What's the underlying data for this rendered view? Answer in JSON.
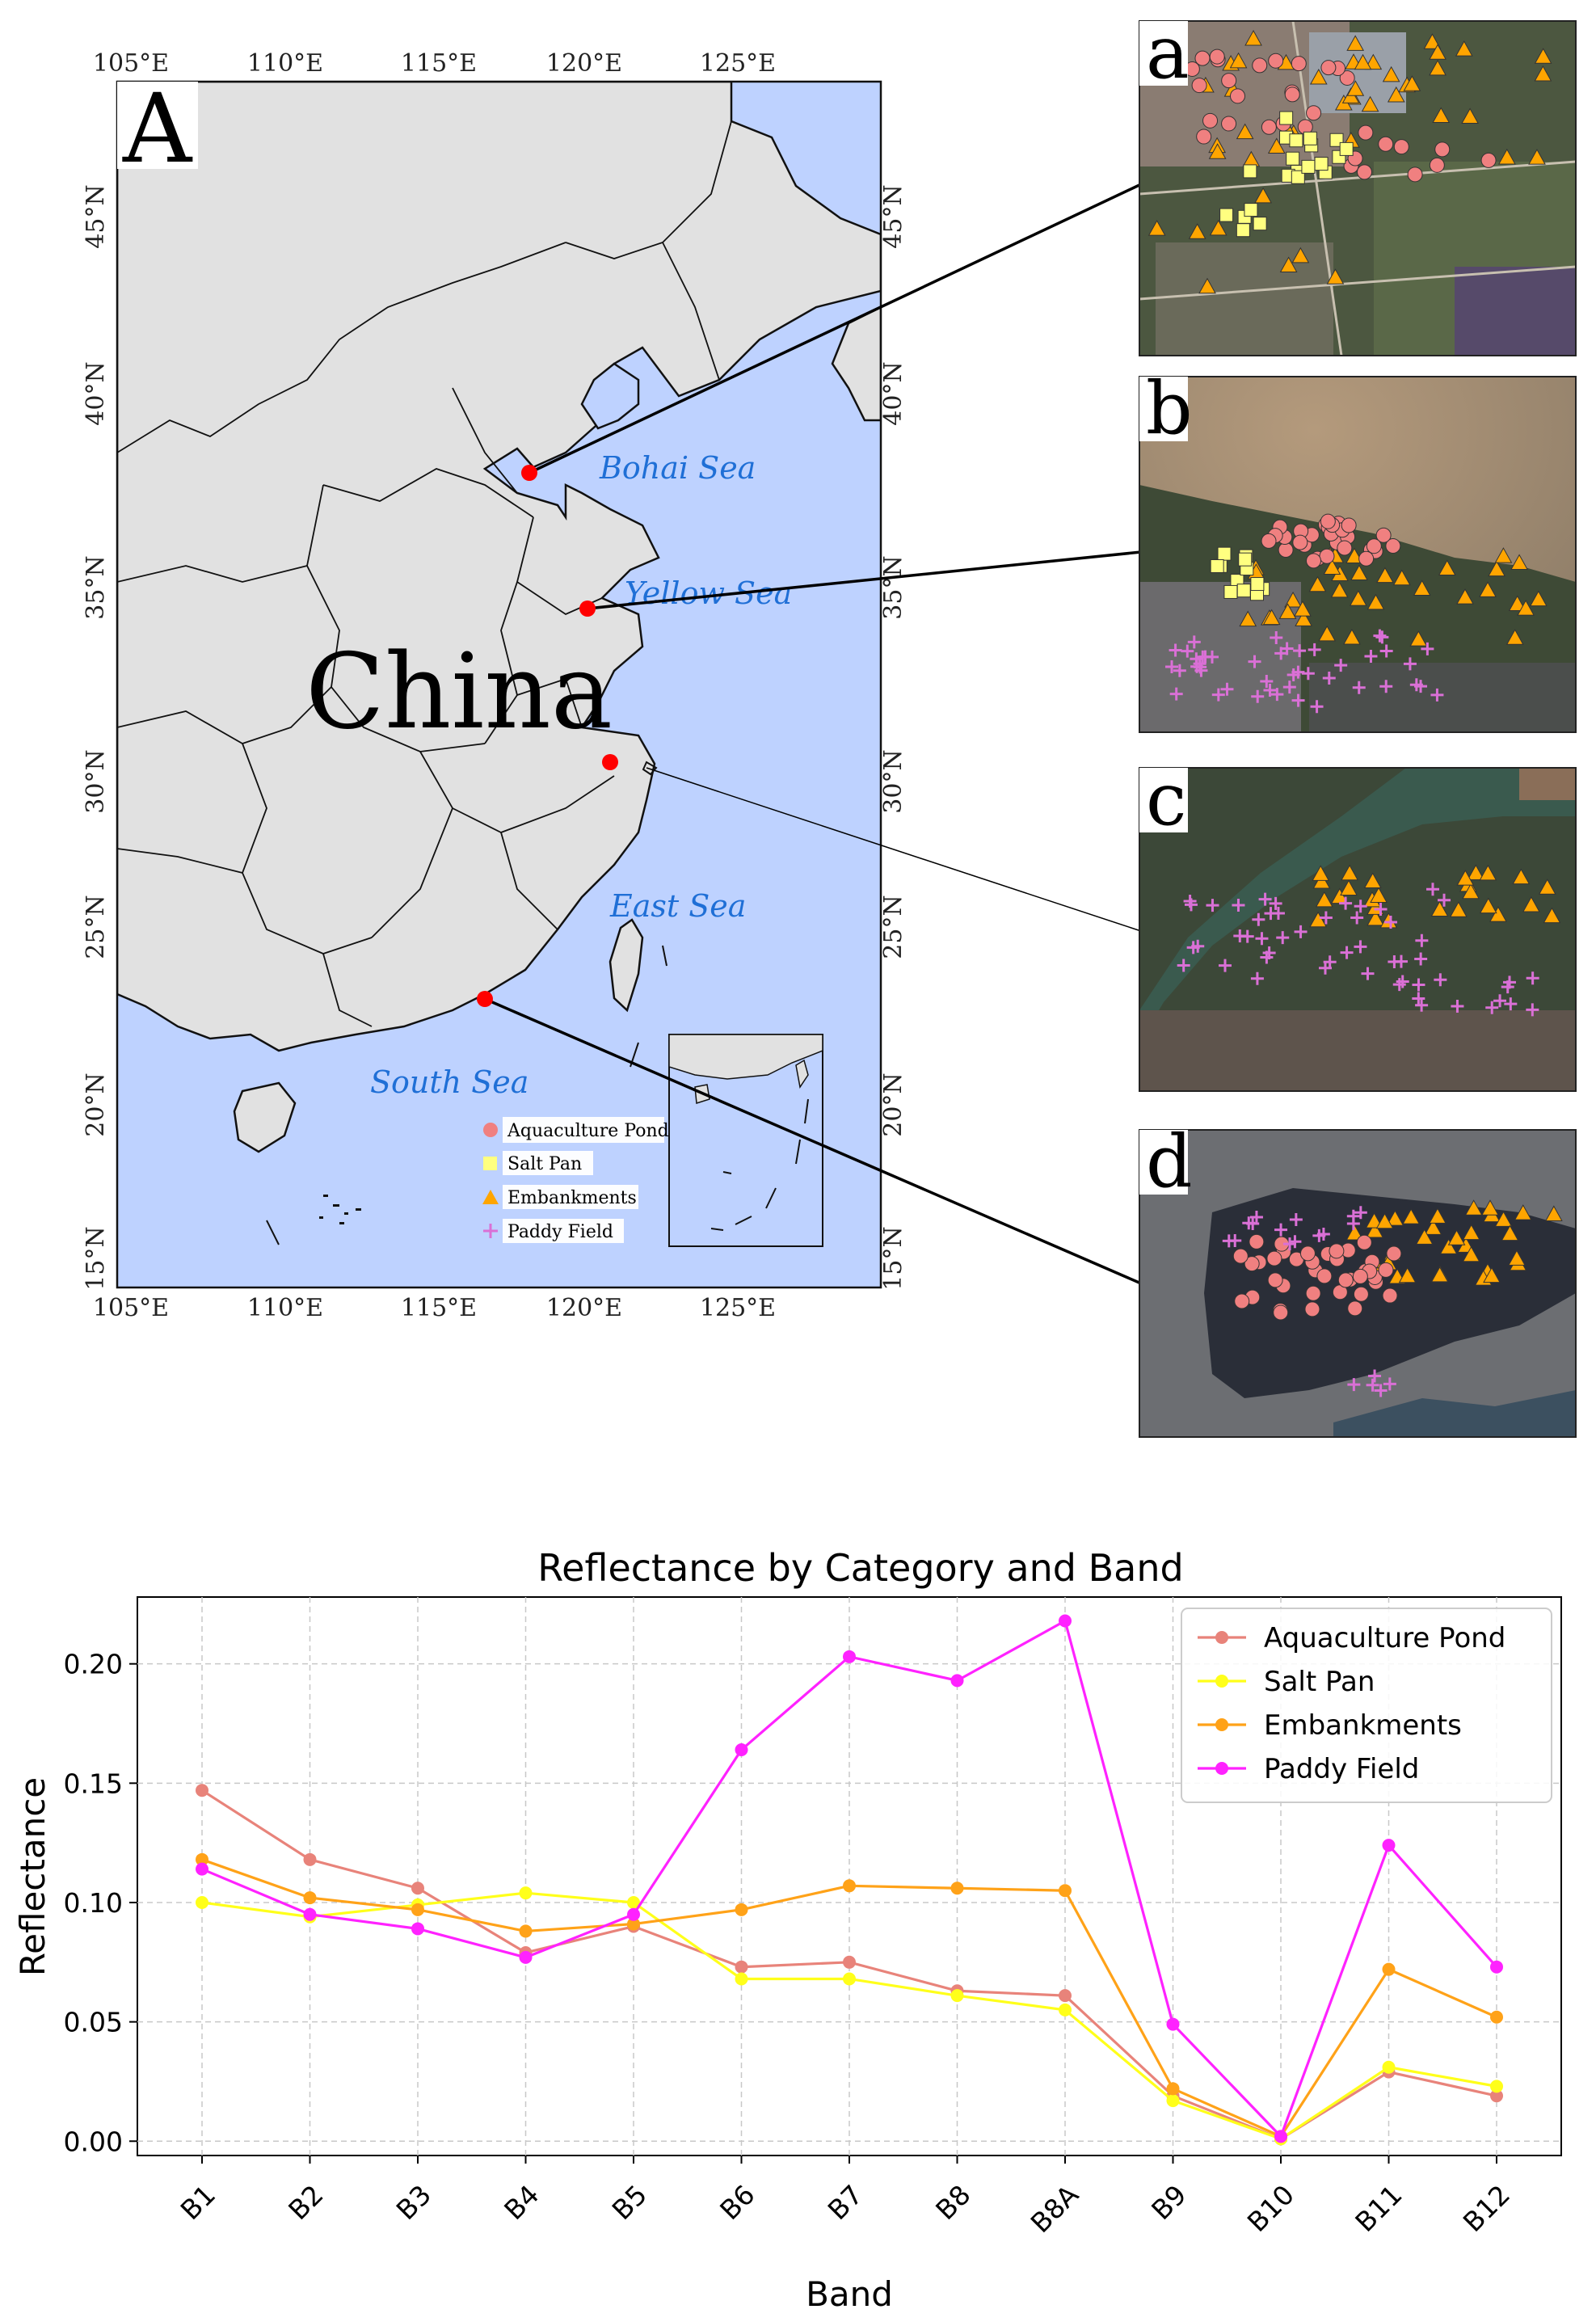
{
  "map_panel": {
    "panel_label": "A",
    "country_label": "China",
    "lon_ticks": [
      "105°E",
      "110°E",
      "115°E",
      "120°E",
      "125°E"
    ],
    "lat_ticks": [
      "45°N",
      "40°N",
      "35°N",
      "30°N",
      "25°N",
      "20°N",
      "15°N"
    ],
    "seas": [
      "Bohai Sea",
      "Yellow Sea",
      "East Sea",
      "South Sea"
    ],
    "colors": {
      "ocean": "#bed2ff",
      "land": "#e1e1e1",
      "site_marker": "#ff0000",
      "sea_label": "#1f6fd6"
    },
    "legend": [
      {
        "label": "Aquaculture Pond",
        "marker": "circle",
        "color": "#f08080"
      },
      {
        "label": "Salt Pan",
        "marker": "square",
        "color": "#ffff80"
      },
      {
        "label": "Embankments",
        "marker": "triangle",
        "color": "#ffa500"
      },
      {
        "label": "Paddy Field",
        "marker": "plus",
        "color": "#da70d6"
      }
    ]
  },
  "satellite_panels": [
    {
      "label": "a"
    },
    {
      "label": "b"
    },
    {
      "label": "c"
    },
    {
      "label": "d"
    }
  ],
  "chart_data": {
    "type": "line",
    "title": "Reflectance by Category and Band",
    "xlabel": "Band",
    "ylabel": "Reflectance",
    "categories": [
      "B1",
      "B2",
      "B3",
      "B4",
      "B5",
      "B6",
      "B7",
      "B8",
      "B8A",
      "B9",
      "B10",
      "B11",
      "B12"
    ],
    "ylim": [
      -0.006,
      0.228
    ],
    "yticks": [
      0.0,
      0.05,
      0.1,
      0.15,
      0.2
    ],
    "ytick_labels": [
      "0.00",
      "0.05",
      "0.10",
      "0.15",
      "0.20"
    ],
    "grid": true,
    "legend_position": "top-right",
    "series": [
      {
        "name": "Aquaculture Pond",
        "color": "#e8837a",
        "values": [
          0.147,
          0.118,
          0.106,
          0.079,
          0.09,
          0.073,
          0.075,
          0.063,
          0.061,
          0.019,
          0.001,
          0.029,
          0.019
        ]
      },
      {
        "name": "Salt Pan",
        "color": "#ffff1a",
        "values": [
          0.1,
          0.094,
          0.099,
          0.104,
          0.1,
          0.068,
          0.068,
          0.061,
          0.055,
          0.017,
          0.001,
          0.031,
          0.023
        ]
      },
      {
        "name": "Embankments",
        "color": "#ffa218",
        "values": [
          0.118,
          0.102,
          0.097,
          0.088,
          0.091,
          0.097,
          0.107,
          0.106,
          0.105,
          0.022,
          0.002,
          0.072,
          0.052
        ]
      },
      {
        "name": "Paddy Field",
        "color": "#ff22ff",
        "values": [
          0.114,
          0.095,
          0.089,
          0.077,
          0.095,
          0.164,
          0.203,
          0.193,
          0.218,
          0.049,
          0.002,
          0.124,
          0.073
        ]
      }
    ]
  }
}
